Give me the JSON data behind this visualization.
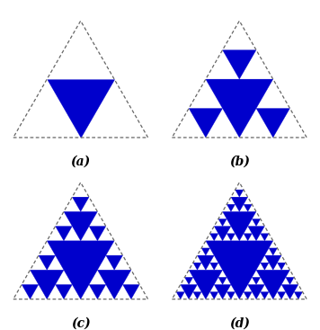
{
  "blue_color": "#0000CC",
  "dashed_color": "#666666",
  "bg_color": "#ffffff",
  "labels": [
    "(a)",
    "(b)",
    "(c)",
    "(d)"
  ],
  "label_fontsize": 10,
  "fig_width": 3.56,
  "fig_height": 3.67
}
